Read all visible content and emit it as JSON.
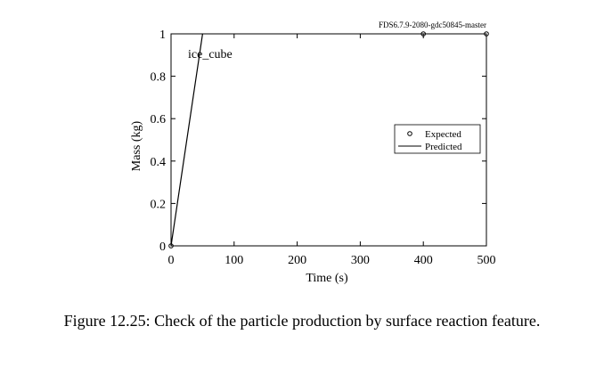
{
  "caption": "Figure 12.25: Check of the particle production by surface reaction feature.",
  "chart_data": {
    "type": "line",
    "title": "",
    "version_tag": "FDS6.7.9-2080-gdc50845-master",
    "annotation": "ice_cube",
    "xlabel": "Time (s)",
    "ylabel": "Mass (kg)",
    "xlim": [
      0,
      500
    ],
    "ylim": [
      0,
      1
    ],
    "xticks": [
      0,
      100,
      200,
      300,
      400,
      500
    ],
    "yticks": [
      0,
      0.2,
      0.4,
      0.6,
      0.8,
      1
    ],
    "xtick_labels": [
      "0",
      "100",
      "200",
      "300",
      "400",
      "500"
    ],
    "ytick_labels": [
      "0",
      "0.2",
      "0.4",
      "0.6",
      "0.8",
      "1"
    ],
    "legend_position": "right",
    "grid": false,
    "series": [
      {
        "name": "Expected",
        "style": "markers",
        "x": [
          0,
          400,
          500
        ],
        "y": [
          0,
          1,
          1
        ]
      },
      {
        "name": "Predicted",
        "style": "line",
        "x": [
          0,
          50
        ],
        "y": [
          0,
          1
        ]
      }
    ]
  }
}
